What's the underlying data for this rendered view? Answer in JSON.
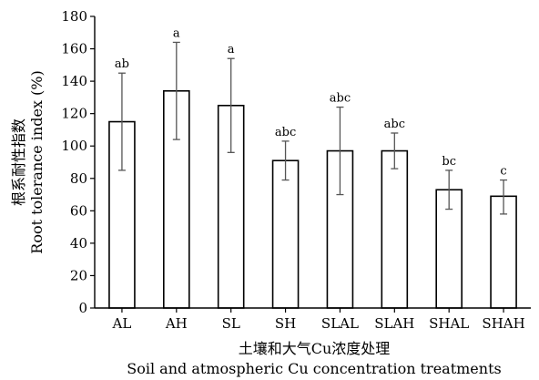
{
  "chart_data": {
    "type": "bar",
    "xlabel_cn": "土壤和大气Cu浓度处理",
    "xlabel_en": "Soil and atmospheric Cu concentration treatments",
    "ylabel_cn": "根系耐性指数",
    "ylabel_en": "Root tolerance index (%)",
    "ylim": [
      0,
      180
    ],
    "yticks": [
      0,
      20,
      40,
      60,
      80,
      100,
      120,
      140,
      160,
      180
    ],
    "grid": false,
    "categories": [
      "AL",
      "AH",
      "SL",
      "SH",
      "SLAL",
      "SLAH",
      "SHAL",
      "SHAH"
    ],
    "values": [
      115,
      134,
      125,
      91,
      97,
      97,
      73,
      69
    ],
    "error_low": [
      85,
      104,
      96,
      79,
      70,
      86,
      61,
      58
    ],
    "error_high": [
      145,
      164,
      154,
      103,
      124,
      108,
      85,
      79
    ],
    "significance": [
      "ab",
      "a",
      "a",
      "abc",
      "abc",
      "abc",
      "bc",
      "c"
    ]
  }
}
